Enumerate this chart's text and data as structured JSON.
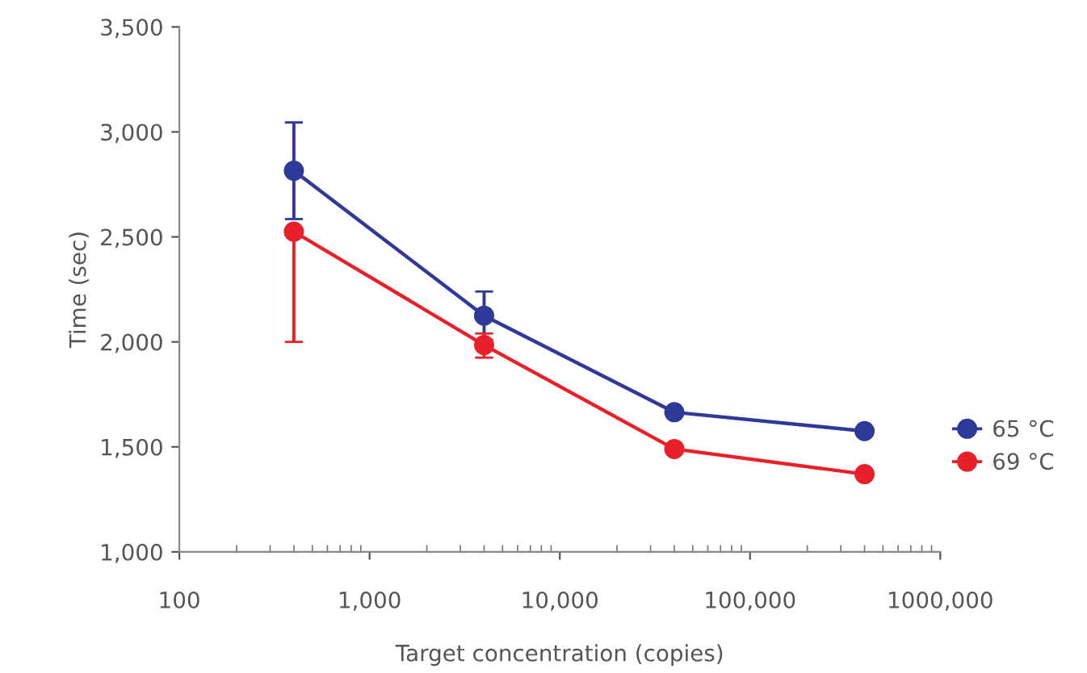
{
  "chart_data": {
    "type": "line",
    "xlabel": "Target concentration (copies)",
    "ylabel": "Time (sec)",
    "x": [
      400,
      4000,
      40000,
      400000
    ],
    "series": [
      {
        "name": "65 °C",
        "color": "#2e3a97",
        "values": [
          2815,
          2125,
          1665,
          1575
        ],
        "errors": [
          [
            2585,
            3045
          ],
          [
            2010,
            2240
          ],
          null,
          null
        ]
      },
      {
        "name": "69 °C",
        "color": "#e8202a",
        "values": [
          2525,
          1985,
          1490,
          1370
        ],
        "errors": [
          [
            2000,
            2525
          ],
          [
            1925,
            2040
          ],
          null,
          null
        ]
      }
    ],
    "log": "x",
    "xlim": [
      100,
      1000000
    ],
    "xticks": [
      100,
      {
        "value": 1000,
        "label": "1,000"
      },
      {
        "value": 10000,
        "label": "10,000"
      },
      {
        "value": 100000,
        "label": "100,000"
      },
      {
        "value": 1000000,
        "label": "1000,000"
      }
    ],
    "ylim": [
      1000,
      3500
    ],
    "yticks": [
      {
        "value": 1000,
        "label": "1,000"
      },
      {
        "value": 1500,
        "label": "1,500"
      },
      {
        "value": 2000,
        "label": "2,000"
      },
      {
        "value": 2500,
        "label": "2,500"
      },
      {
        "value": 3000,
        "label": "3,000"
      },
      {
        "value": 3500,
        "label": "3,500"
      }
    ],
    "grid": false,
    "legend": "right",
    "marker": "circle",
    "line_style": "solid"
  }
}
